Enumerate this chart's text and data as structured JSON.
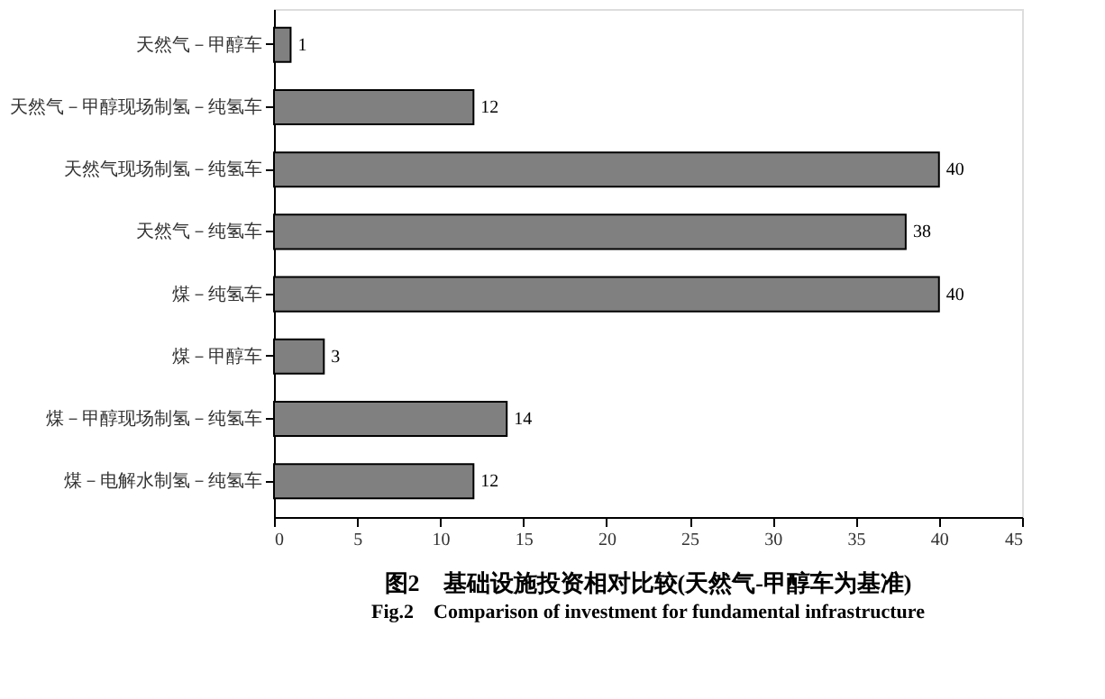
{
  "chart_data": {
    "type": "bar",
    "orientation": "horizontal",
    "title": "图2　基础设施投资相对比较(天然气-甲醇车为基准)",
    "subtitle": "Fig.2　Comparison of investment for fundamental infrastructure",
    "categories": [
      "天然气－甲醇车",
      "天然气－甲醇现场制氢－纯氢车",
      "天然气现场制氢－纯氢车",
      "天然气－纯氢车",
      "煤－纯氢车",
      "煤－甲醇车",
      "煤－甲醇现场制氢－纯氢车",
      "煤－电解水制氢－纯氢车"
    ],
    "values": [
      1,
      12,
      40,
      38,
      40,
      3,
      14,
      12
    ],
    "color": "#808080",
    "xlim": [
      0,
      45
    ],
    "xticks": [
      0,
      5,
      10,
      15,
      20,
      25,
      30,
      35,
      40,
      45
    ],
    "data_labels": true,
    "grid": false
  }
}
